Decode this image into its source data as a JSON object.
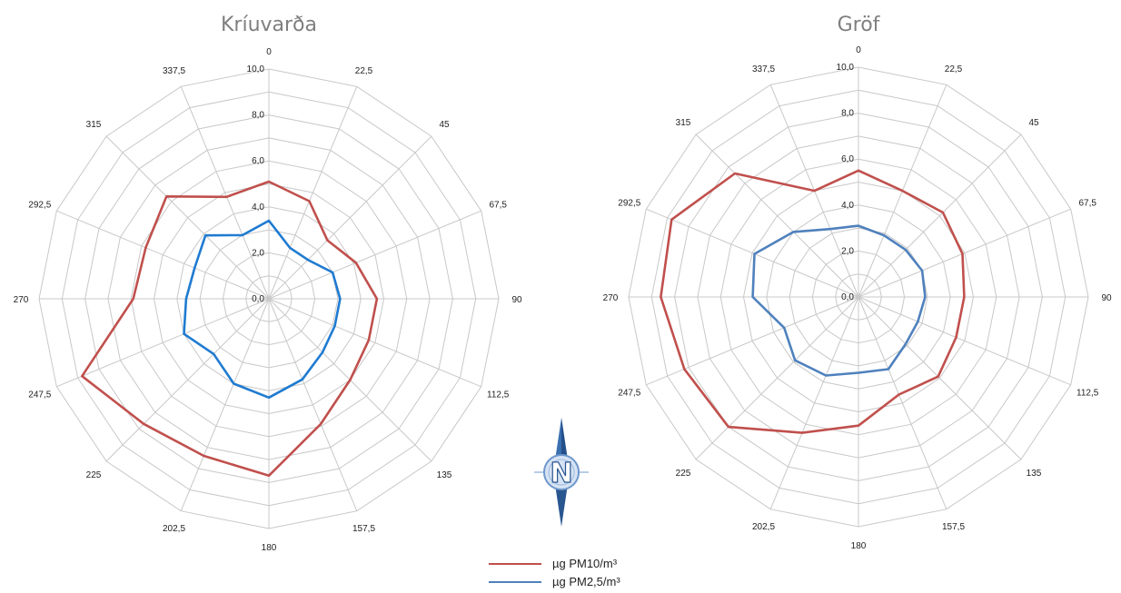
{
  "chart_data": [
    {
      "type": "radar",
      "title": "Kríuvarða",
      "directions": [
        "0",
        "22,5",
        "45",
        "67,5",
        "90",
        "112,5",
        "135",
        "157,5",
        "180",
        "202,5",
        "225",
        "247,5",
        "270",
        "292,5",
        "315",
        "337,5"
      ],
      "ring_labels": [
        "0,0",
        "2,0",
        "4,0",
        "6,0",
        "8,0",
        "10,0"
      ],
      "rlim": [
        0,
        10
      ],
      "series": [
        {
          "name": "µg PM10/m³",
          "color": "#c0504d",
          "values": [
            5.1,
            4.6,
            3.6,
            4.1,
            4.7,
            4.7,
            5.0,
            5.9,
            7.7,
            7.4,
            7.7,
            8.8,
            5.9,
            5.8,
            6.3,
            4.8
          ]
        },
        {
          "name": "µg PM2,5/m³",
          "color": "#1f7bd1",
          "values": [
            3.4,
            2.4,
            2.4,
            3.0,
            3.1,
            3.1,
            3.3,
            3.8,
            4.3,
            4.0,
            3.4,
            4.0,
            3.6,
            3.5,
            3.9,
            3.0
          ]
        }
      ]
    },
    {
      "type": "radar",
      "title": "Gröf",
      "directions": [
        "0",
        "22,5",
        "45",
        "67,5",
        "90",
        "112,5",
        "135",
        "157,5",
        "180",
        "202,5",
        "225",
        "247,5",
        "270",
        "292,5",
        "315",
        "337,5"
      ],
      "ring_labels": [
        "0,0",
        "2,0",
        "4,0",
        "6,0",
        "8,0",
        "10,0"
      ],
      "rlim": [
        0,
        10
      ],
      "series": [
        {
          "name": "µg PM10/m³",
          "color": "#c0504d",
          "values": [
            5.5,
            5.0,
            5.2,
            4.9,
            4.6,
            4.6,
            4.9,
            4.6,
            5.6,
            6.4,
            8.0,
            8.2,
            8.6,
            8.8,
            7.6,
            5.0
          ]
        },
        {
          "name": "µg PM2,5/m³",
          "color": "#4f81bd",
          "values": [
            3.1,
            2.9,
            2.9,
            3.0,
            2.9,
            2.8,
            2.9,
            3.4,
            3.3,
            3.7,
            3.9,
            3.5,
            4.6,
            4.9,
            4.0,
            3.2
          ]
        }
      ]
    }
  ],
  "legend": [
    {
      "label": "µg PM10/m³",
      "color": "#c0504d"
    },
    {
      "label": "µg PM2,5/m³",
      "color": "#4f81bd"
    }
  ],
  "compass": {
    "letter": "N",
    "icon": "north-arrow-compass-icon"
  }
}
